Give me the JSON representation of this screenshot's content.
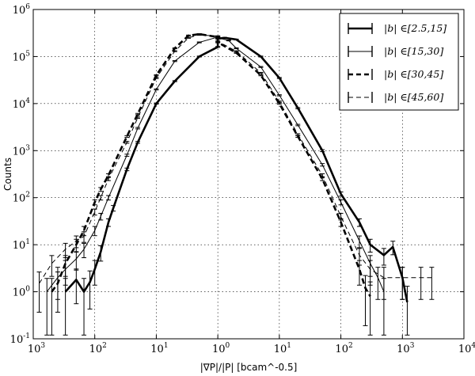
{
  "chart_data": {
    "type": "line",
    "title": "",
    "xlabel": "|∇P|/|P| [bcam^-0.5]",
    "ylabel": "Counts",
    "x_scale": "symlog",
    "y_scale": "log",
    "xlim": [
      -1000,
      10000
    ],
    "ylim": [
      0.1,
      1000000
    ],
    "x_ticks": [
      {
        "value": -1000,
        "base": "10",
        "exp": "3"
      },
      {
        "value": -100,
        "base": "10",
        "exp": "2"
      },
      {
        "value": -10,
        "base": "10",
        "exp": "1"
      },
      {
        "value": 1,
        "base": "10",
        "exp": "0"
      },
      {
        "value": 10,
        "base": "10",
        "exp": "1"
      },
      {
        "value": 100,
        "base": "10",
        "exp": "2"
      },
      {
        "value": 1000,
        "base": "10",
        "exp": "3"
      },
      {
        "value": 10000,
        "base": "10",
        "exp": "4"
      }
    ],
    "y_ticks": [
      {
        "value": 0.1,
        "base": "10",
        "exp": "-1"
      },
      {
        "value": 1,
        "base": "10",
        "exp": "0"
      },
      {
        "value": 10,
        "base": "10",
        "exp": "1"
      },
      {
        "value": 100,
        "base": "10",
        "exp": "2"
      },
      {
        "value": 1000,
        "base": "10",
        "exp": "3"
      },
      {
        "value": 10000,
        "base": "10",
        "exp": "4"
      },
      {
        "value": 100000,
        "base": "10",
        "exp": "5"
      },
      {
        "value": 1000000,
        "base": "10",
        "exp": "6"
      }
    ],
    "grid": true,
    "legend_position": "top-right",
    "series": [
      {
        "name": "|b| ∈[2.5,15]",
        "style": "solid-thick",
        "x": [
          -300,
          -200,
          -150,
          -120,
          -100,
          -80,
          -60,
          -50,
          -30,
          -20,
          -10,
          -5,
          -2,
          -1,
          1,
          1.3,
          2,
          5,
          10,
          20,
          50,
          100,
          200,
          300,
          500,
          700,
          1000,
          1200
        ],
        "y": [
          1.0,
          1.8,
          1.0,
          1.6,
          3.0,
          7.0,
          30,
          60,
          400,
          1500,
          10000,
          30000,
          100000,
          160000,
          240000,
          250000,
          230000,
          100000,
          35000,
          8000,
          1000,
          120,
          30,
          10,
          6,
          9,
          2,
          0.6
        ]
      },
      {
        "name": "|b| ∈[15,30]",
        "style": "solid-thin",
        "x": [
          -600,
          -400,
          -300,
          -200,
          -150,
          -100,
          -80,
          -60,
          -30,
          -20,
          -10,
          -5,
          -2,
          -1,
          1,
          1.5,
          2,
          5,
          10,
          20,
          50,
          100,
          200,
          300,
          400,
          500
        ],
        "y": [
          1.0,
          2.0,
          3.0,
          5.0,
          8.0,
          20,
          40,
          100,
          800,
          3000,
          20000,
          80000,
          200000,
          260000,
          250000,
          220000,
          150000,
          60000,
          15000,
          3500,
          500,
          80,
          12,
          4,
          2,
          1
        ]
      },
      {
        "name": "|b| ∈[30,45]",
        "style": "dashed-thick",
        "x": [
          -500,
          -400,
          -300,
          -200,
          -150,
          -100,
          -80,
          -60,
          -30,
          -20,
          -10,
          -5,
          -3,
          -2,
          -1,
          1,
          2,
          5,
          10,
          20,
          50,
          100,
          200,
          250,
          300
        ],
        "y": [
          1.0,
          1.5,
          4.0,
          10,
          20,
          80,
          150,
          300,
          2000,
          6000,
          40000,
          150000,
          280000,
          300000,
          260000,
          200000,
          120000,
          40000,
          10000,
          2000,
          250,
          30,
          3,
          1.2,
          0.8
        ]
      },
      {
        "name": "|b| ∈[45,60]",
        "style": "dashed-thin",
        "x": [
          -800,
          -500,
          -300,
          -200,
          -150,
          -100,
          -80,
          -60,
          -30,
          -20,
          -10,
          -5,
          -3,
          -2,
          -1,
          1,
          2,
          5,
          10,
          20,
          50,
          100,
          200,
          300,
          500,
          1000,
          2000,
          3000
        ],
        "y": [
          1.5,
          4.0,
          8.0,
          12,
          15,
          50,
          100,
          250,
          1500,
          5000,
          35000,
          130000,
          250000,
          290000,
          270000,
          210000,
          130000,
          45000,
          11000,
          2200,
          300,
          40,
          6,
          3,
          2,
          2,
          2,
          2
        ]
      }
    ]
  }
}
